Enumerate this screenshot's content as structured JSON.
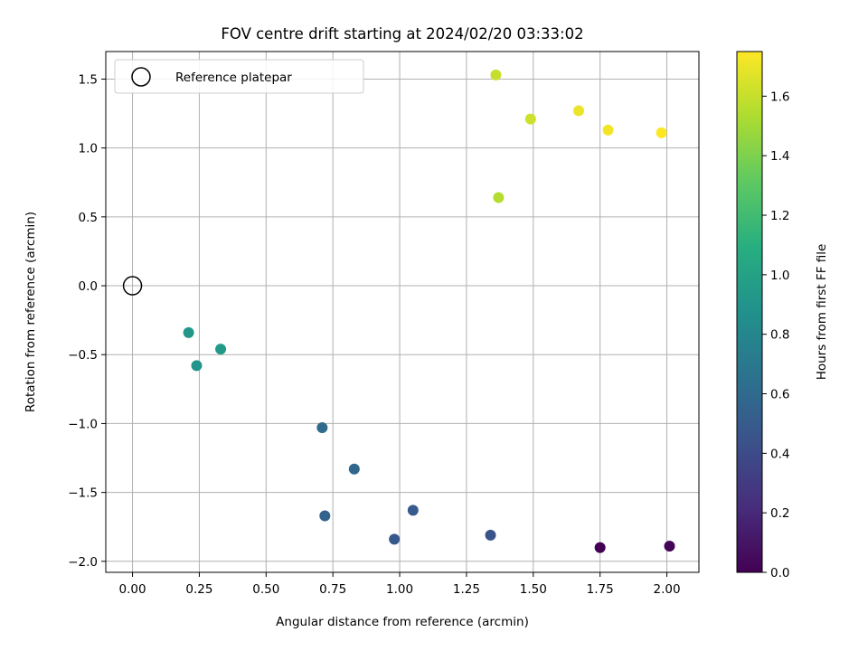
{
  "chart_data": {
    "type": "scatter",
    "title": "FOV centre drift starting at 2024/02/20 03:33:02",
    "xlabel": "Angular distance from reference (arcmin)",
    "ylabel": "Rotation from reference (arcmin)",
    "xlim": [
      -0.1,
      2.12
    ],
    "ylim": [
      -2.08,
      1.7
    ],
    "xticks": [
      0.0,
      0.25,
      0.5,
      0.75,
      1.0,
      1.25,
      1.5,
      1.75,
      2.0
    ],
    "xtick_labels": [
      "0.00",
      "0.25",
      "0.50",
      "0.75",
      "1.00",
      "1.25",
      "1.50",
      "1.75",
      "2.00"
    ],
    "yticks": [
      -2.0,
      -1.5,
      -1.0,
      -0.5,
      0.0,
      0.5,
      1.0,
      1.5
    ],
    "ytick_labels": [
      "−2.0",
      "−1.5",
      "−1.0",
      "−0.5",
      "0.0",
      "0.5",
      "1.0",
      "1.5"
    ],
    "grid": true,
    "legend": {
      "position": "top-left",
      "entries": [
        {
          "label": "Reference platepar",
          "marker": "open-circle"
        }
      ]
    },
    "reference_point": {
      "x": 0.0,
      "y": 0.0
    },
    "points": [
      {
        "x": 1.75,
        "y": -1.9,
        "hours": 0.0
      },
      {
        "x": 2.01,
        "y": -1.89,
        "hours": 0.02
      },
      {
        "x": 1.34,
        "y": -1.81,
        "hours": 0.45
      },
      {
        "x": 0.98,
        "y": -1.84,
        "hours": 0.48
      },
      {
        "x": 1.05,
        "y": -1.63,
        "hours": 0.5
      },
      {
        "x": 0.72,
        "y": -1.67,
        "hours": 0.55
      },
      {
        "x": 0.83,
        "y": -1.33,
        "hours": 0.58
      },
      {
        "x": 0.71,
        "y": -1.03,
        "hours": 0.6
      },
      {
        "x": 0.24,
        "y": -0.58,
        "hours": 0.9
      },
      {
        "x": 0.21,
        "y": -0.34,
        "hours": 0.92
      },
      {
        "x": 0.33,
        "y": -0.46,
        "hours": 0.94
      },
      {
        "x": 1.37,
        "y": 0.64,
        "hours": 1.55
      },
      {
        "x": 1.36,
        "y": 1.53,
        "hours": 1.6
      },
      {
        "x": 1.49,
        "y": 1.21,
        "hours": 1.62
      },
      {
        "x": 1.67,
        "y": 1.27,
        "hours": 1.7
      },
      {
        "x": 1.78,
        "y": 1.13,
        "hours": 1.72
      },
      {
        "x": 1.98,
        "y": 1.11,
        "hours": 1.75
      }
    ],
    "colorbar": {
      "label": "Hours from first FF file",
      "colormap": "viridis",
      "range": [
        0.0,
        1.75
      ],
      "ticks": [
        0.0,
        0.2,
        0.4,
        0.6,
        0.8,
        1.0,
        1.2,
        1.4,
        1.6
      ],
      "tick_labels": [
        "0.0",
        "0.2",
        "0.4",
        "0.6",
        "0.8",
        "1.0",
        "1.2",
        "1.4",
        "1.6"
      ]
    }
  }
}
